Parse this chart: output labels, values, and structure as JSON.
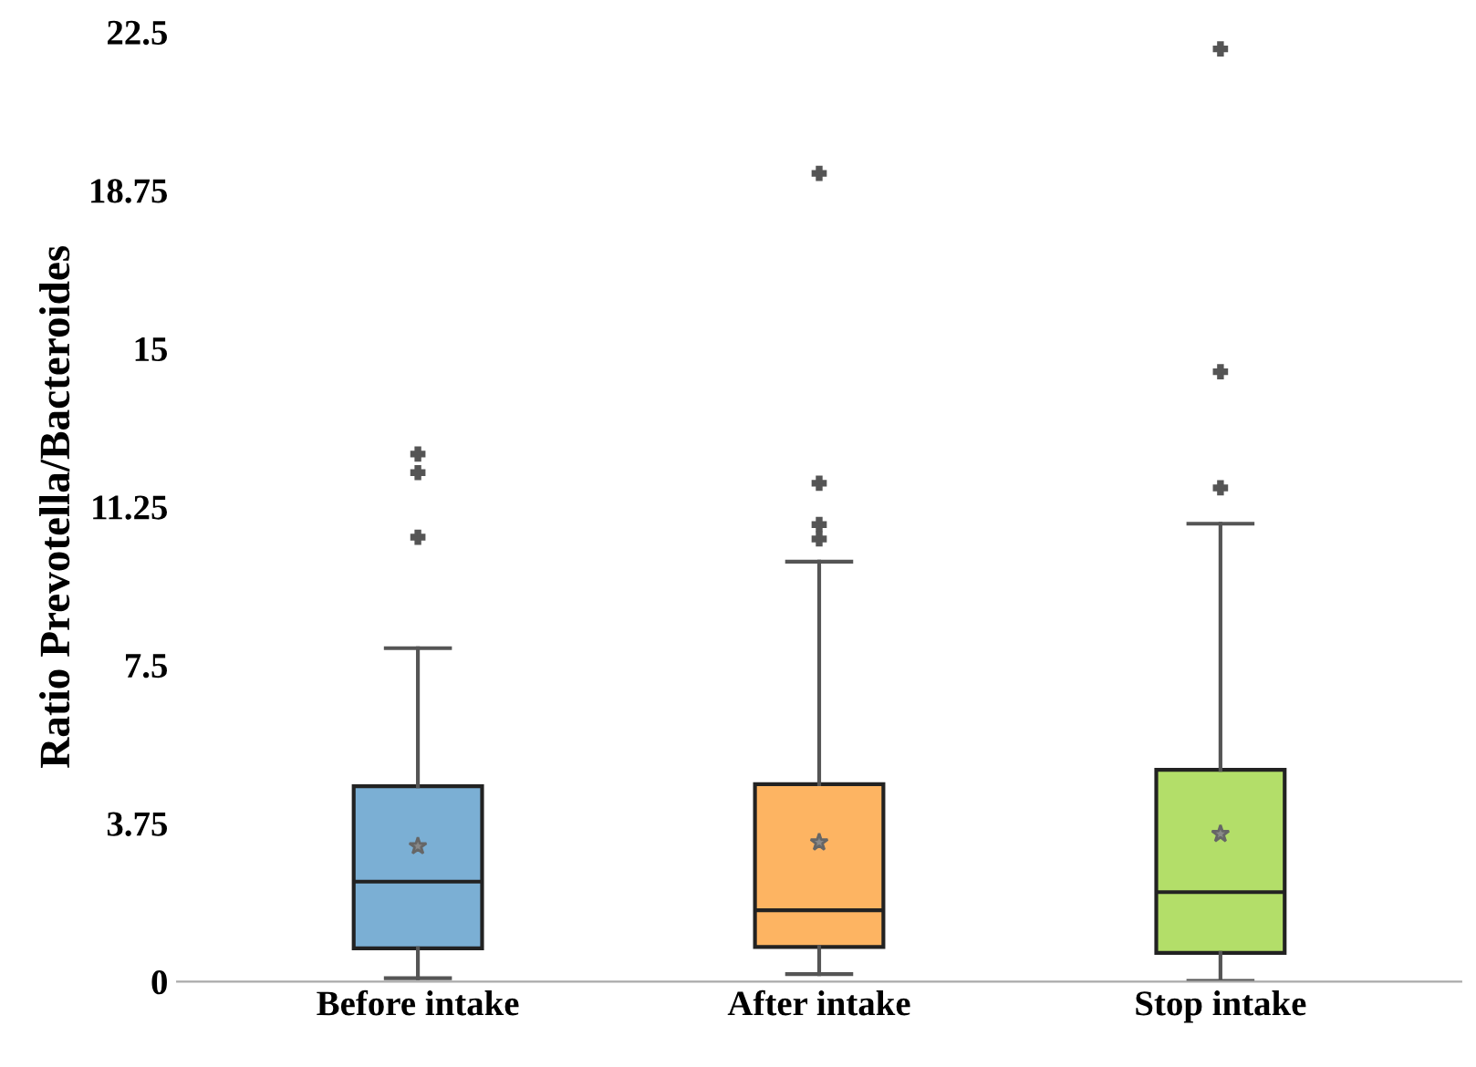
{
  "chart_data": {
    "type": "box",
    "ylabel": "Ratio Prevotella/Bacteroides",
    "categories": [
      "Before intake",
      "After intake",
      "Stop intake"
    ],
    "colors": [
      "#7bafd4",
      "#fdb462",
      "#b3de69"
    ],
    "boxes": [
      {
        "low": 0.08,
        "q1": 0.79,
        "median": 2.37,
        "q3": 4.63,
        "high": 7.9,
        "mean": 3.21,
        "outliers": [
          12.5,
          12.06,
          10.53
        ]
      },
      {
        "low": 0.18,
        "q1": 0.82,
        "median": 1.69,
        "q3": 4.68,
        "high": 9.95,
        "mean": 3.3,
        "outliers": [
          19.15,
          11.81,
          10.83,
          10.49
        ]
      },
      {
        "low": 0.02,
        "q1": 0.68,
        "median": 2.12,
        "q3": 5.02,
        "high": 10.85,
        "mean": 3.5,
        "outliers": [
          22.1,
          14.45,
          11.7
        ]
      }
    ],
    "ylim": [
      0,
      22.5
    ],
    "yticks": [
      0,
      3.75,
      7.5,
      11.25,
      15,
      18.75,
      22.5
    ],
    "grid": false
  }
}
